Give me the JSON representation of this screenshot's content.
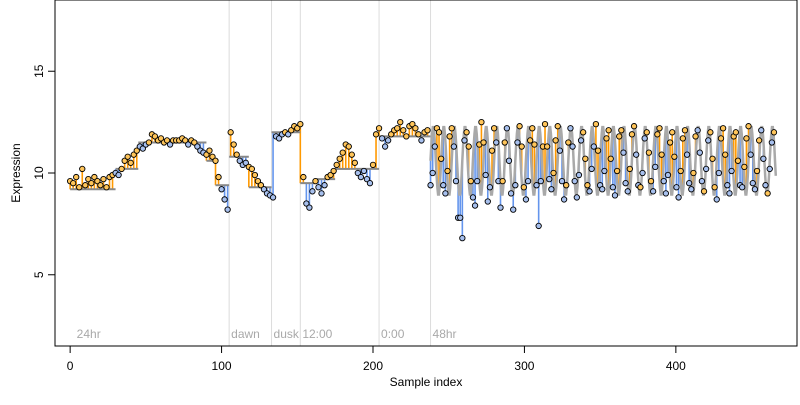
{
  "chart_data": {
    "type": "scatter",
    "title": "",
    "xlabel": "Sample index",
    "ylabel": "Expression",
    "xlim": [
      -10,
      480
    ],
    "ylim": [
      1.5,
      18.5
    ],
    "x_ticks": [
      0,
      100,
      200,
      300,
      400
    ],
    "y_ticks": [
      5,
      10,
      15
    ],
    "grid": false,
    "colors": {
      "above_segment": "#ff9900",
      "below_segment": "#6495ed",
      "trend_line": "#a9a9a9",
      "marker_edge": "#000000",
      "marker_fill_high": "#ffc55a",
      "marker_fill_low": "#a7c0ee",
      "vline": "#dcdcdc",
      "annotation_text": "#a9a9a9"
    },
    "annotations": [
      {
        "x": 3,
        "label": "24hr"
      },
      {
        "x": 105,
        "label": "dawn"
      },
      {
        "x": 133,
        "label": "dusk"
      },
      {
        "x": 152,
        "label": "12:00"
      },
      {
        "x": 204,
        "label": "0:00"
      },
      {
        "x": 238,
        "label": "48hr"
      }
    ],
    "vlines": [
      105,
      133,
      152,
      204,
      238
    ],
    "segment_means": [
      {
        "x_start": 0,
        "x_end": 30,
        "y": 9.2
      },
      {
        "x_start": 30,
        "x_end": 45,
        "y": 10.2
      },
      {
        "x_start": 45,
        "x_end": 90,
        "y": 11.5
      },
      {
        "x_start": 90,
        "x_end": 96,
        "y": 10.6
      },
      {
        "x_start": 96,
        "x_end": 105,
        "y": 9.4
      },
      {
        "x_start": 105,
        "x_end": 118,
        "y": 10.8
      },
      {
        "x_start": 118,
        "x_end": 133,
        "y": 9.3
      },
      {
        "x_start": 133,
        "x_end": 152,
        "y": 12.0
      },
      {
        "x_start": 152,
        "x_end": 163,
        "y": 9.5
      },
      {
        "x_start": 163,
        "x_end": 175,
        "y": 9.7
      },
      {
        "x_start": 175,
        "x_end": 185,
        "y": 10.2
      },
      {
        "x_start": 185,
        "x_end": 204,
        "y": 10.2
      },
      {
        "x_start": 204,
        "x_end": 238,
        "y": 11.8
      }
    ],
    "oscillation": {
      "x_start": 238,
      "x_end": 466,
      "period": 7,
      "center": 10.6,
      "amplitude": 1.7
    },
    "series": [
      {
        "x": [
          0,
          2,
          4,
          6,
          8,
          10,
          12,
          14,
          16,
          18,
          20,
          22,
          24,
          26,
          28,
          30,
          32,
          34,
          36,
          38,
          40,
          42,
          44,
          46,
          48,
          50,
          52,
          54,
          56,
          58,
          60,
          62,
          64,
          66,
          68,
          70,
          72,
          74,
          76,
          78,
          80,
          82,
          84,
          86,
          88,
          90,
          92,
          94,
          96,
          98,
          100,
          102,
          104,
          106,
          108,
          110,
          112,
          114,
          116,
          118,
          120,
          122,
          124,
          126,
          128,
          130,
          132,
          134,
          136,
          138,
          140,
          142,
          144,
          146,
          148,
          150,
          152,
          154,
          156,
          158,
          160,
          162,
          164,
          166,
          168,
          170,
          172,
          174,
          176,
          178,
          180,
          182,
          184,
          186,
          188,
          190,
          192,
          194,
          196,
          198,
          200,
          202,
          204,
          206,
          208,
          210,
          212,
          214,
          216,
          218,
          220,
          222,
          224,
          226,
          228,
          230,
          232,
          234,
          236
        ],
        "y": [
          9.6,
          9.5,
          9.8,
          9.3,
          10.2,
          9.4,
          9.7,
          9.5,
          9.8,
          9.6,
          9.4,
          9.7,
          9.3,
          9.8,
          9.9,
          10.0,
          9.9,
          10.2,
          10.6,
          10.8,
          10.5,
          10.9,
          11.1,
          11.3,
          11.2,
          11.4,
          11.5,
          11.9,
          11.8,
          11.6,
          11.7,
          11.5,
          11.6,
          11.4,
          11.6,
          11.6,
          11.6,
          11.7,
          11.6,
          11.4,
          11.6,
          11.5,
          11.3,
          11.1,
          11.0,
          10.9,
          11.1,
          10.8,
          10.6,
          9.8,
          9.2,
          8.7,
          8.2,
          12.0,
          11.4,
          10.9,
          10.6,
          10.4,
          10.5,
          10.3,
          10.2,
          9.9,
          9.6,
          9.4,
          9.2,
          9.0,
          8.9,
          8.8,
          11.8,
          11.7,
          11.9,
          12.0,
          11.9,
          12.1,
          12.3,
          12.2,
          12.4,
          9.8,
          8.5,
          8.3,
          9.1,
          9.6,
          9.3,
          9.0,
          9.4,
          9.8,
          9.9,
          10.1,
          10.4,
          10.7,
          11.0,
          11.4,
          11.3,
          10.9,
          10.5,
          10.0,
          9.8,
          10.1,
          9.7,
          9.5,
          10.4,
          11.9,
          12.2,
          11.7,
          11.3,
          11.6,
          11.9,
          12.1,
          12.2,
          12.5,
          12.1,
          11.8,
          12.3,
          12.4,
          12.2,
          11.9,
          11.6,
          12.0,
          12.1
        ]
      },
      {
        "x": [
          238,
          239.4,
          240.8,
          242.2,
          243.6,
          245,
          246.4,
          247.8,
          249.2,
          250.6,
          252,
          253.4,
          254.8,
          256.2,
          257.6,
          259,
          260.4,
          261.8,
          263.2,
          264.6,
          266,
          267.4,
          268.8,
          270.2,
          271.6,
          273,
          274.4,
          275.8,
          277.2,
          278.6,
          280,
          281.4,
          282.8,
          284.2,
          285.6,
          287,
          288.4,
          289.8,
          291.2,
          292.6,
          294,
          295.4,
          296.8,
          298.2,
          299.6,
          301,
          302.4,
          303.8,
          305.2,
          306.6,
          308,
          309.4,
          310.8,
          312.2,
          313.6,
          315,
          316.4,
          317.8,
          319.2,
          320.6,
          322,
          323.4,
          324.8,
          326.2,
          327.6,
          329,
          330.4,
          331.8,
          333.2,
          334.6,
          336,
          337.4,
          338.8,
          340.2,
          341.6,
          343,
          344.4,
          345.8,
          347.2,
          348.6,
          350,
          351.4,
          352.8,
          354.2,
          355.6,
          357,
          358.4,
          359.8,
          361.2,
          362.6,
          364,
          365.4,
          366.8,
          368.2,
          369.6,
          371,
          372.4,
          373.8,
          375.2,
          376.6,
          378,
          379.4,
          380.8,
          382.2,
          383.6,
          385,
          386.4,
          387.8,
          389.2,
          390.6,
          392,
          393.4,
          394.8,
          396.2,
          397.6,
          399,
          400.4,
          401.8,
          403.2,
          404.6,
          406,
          407.4,
          408.8,
          410.2,
          411.6,
          413,
          414.4,
          415.8,
          417.2,
          418.6,
          420,
          421.4,
          422.8,
          424.2,
          425.6,
          427,
          428.4,
          429.8,
          431.2,
          432.6,
          434,
          435.4,
          436.8,
          438.2,
          439.6,
          441,
          442.4,
          443.8,
          445.2,
          446.6,
          448,
          449.4,
          450.8,
          452.2,
          453.6,
          455,
          456.4,
          457.8,
          459.2,
          460.6,
          462,
          463.4,
          464.8
        ],
        "y": [
          9.4,
          10.0,
          11.3,
          12.2,
          12.0,
          10.7,
          9.4,
          9.0,
          10.1,
          11.8,
          12.2,
          11.3,
          9.6,
          7.8,
          7.8,
          6.8,
          11.6,
          12.0,
          11.3,
          9.6,
          8.8,
          8.4,
          9.6,
          11.4,
          12.5,
          11.5,
          9.9,
          8.6,
          9.3,
          11.1,
          12.2,
          11.5,
          9.6,
          8.3,
          9.6,
          11.5,
          12.2,
          10.6,
          9.0,
          8.2,
          9.4,
          11.5,
          12.3,
          11.3,
          9.3,
          8.7,
          9.6,
          11.6,
          12.2,
          11.4,
          9.4,
          7.4,
          9.6,
          11.3,
          12.4,
          11.3,
          9.7,
          9.2,
          10.0,
          11.6,
          12.3,
          11.1,
          9.6,
          8.7,
          9.4,
          11.5,
          12.2,
          11.3,
          9.6,
          8.8,
          9.9,
          11.6,
          12.0,
          10.7,
          9.4,
          9.1,
          10.2,
          11.3,
          12.4,
          11.1,
          9.4,
          9.2,
          10.1,
          11.7,
          12.1,
          10.7,
          9.3,
          8.9,
          10.1,
          11.8,
          12.1,
          11.0,
          9.5,
          9.1,
          10.2,
          11.9,
          12.3,
          10.9,
          9.4,
          9.3,
          10.0,
          11.7,
          12.0,
          11.0,
          9.6,
          9.1,
          10.3,
          11.9,
          12.2,
          10.9,
          9.6,
          9.0,
          9.9,
          11.5,
          12.0,
          10.8,
          9.3,
          8.8,
          10.1,
          11.7,
          12.1,
          10.9,
          9.5,
          9.2,
          10.0,
          11.8,
          12.1,
          11.0,
          9.6,
          9.1,
          10.2,
          11.6,
          12.0,
          10.7,
          9.3,
          8.7,
          10.0,
          11.7,
          12.2,
          10.9,
          9.4,
          9.0,
          10.1,
          11.8,
          12.0,
          10.6,
          9.4,
          9.3,
          10.3,
          11.7,
          12.3,
          10.9,
          9.5,
          9.2,
          10.1,
          11.6,
          12.1,
          10.7,
          9.4,
          9.0,
          10.2,
          11.5,
          12.0
        ]
      }
    ]
  }
}
